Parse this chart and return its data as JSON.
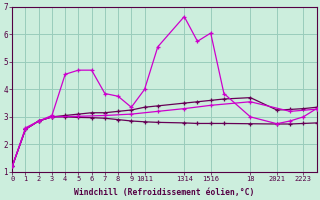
{
  "background_color": "#cceedd",
  "grid_color": "#99ccbb",
  "line_color_bright": "#cc00cc",
  "line_color_dark": "#660055",
  "xlabel": "Windchill (Refroidissement éolien,°C)",
  "xlim": [
    0,
    23
  ],
  "ylim": [
    1,
    7
  ],
  "yticks": [
    1,
    2,
    3,
    4,
    5,
    6,
    7
  ],
  "xtick_positions": [
    0,
    1,
    2,
    3,
    4,
    5,
    6,
    7,
    8,
    9,
    10,
    13,
    15,
    18,
    20,
    22
  ],
  "xtick_labels": [
    "0",
    "1",
    "2",
    "3",
    "4",
    "5",
    "6",
    "7",
    "8",
    "9",
    "1011",
    "1314",
    "1516",
    "18",
    "2021",
    "2223"
  ],
  "s1_x": [
    0,
    1,
    2,
    3,
    4,
    5,
    6,
    7,
    8,
    9,
    10,
    11,
    13,
    14,
    15,
    16,
    18,
    20,
    21,
    22,
    23
  ],
  "s1_y": [
    1.2,
    2.6,
    2.85,
    3.05,
    4.55,
    4.7,
    4.7,
    3.85,
    3.75,
    3.35,
    4.0,
    5.55,
    6.65,
    5.75,
    6.05,
    3.85,
    3.0,
    2.75,
    2.85,
    3.0,
    3.3
  ],
  "s2_x": [
    0,
    1,
    2,
    3,
    4,
    5,
    6,
    7,
    8,
    9,
    10,
    11,
    13,
    14,
    15,
    16,
    18,
    20,
    21,
    22,
    23
  ],
  "s2_y": [
    1.2,
    2.55,
    2.85,
    3.0,
    3.05,
    3.1,
    3.15,
    3.15,
    3.2,
    3.25,
    3.35,
    3.4,
    3.5,
    3.55,
    3.6,
    3.65,
    3.7,
    3.25,
    3.27,
    3.3,
    3.35
  ],
  "s3_x": [
    0,
    1,
    2,
    3,
    5,
    7,
    9,
    11,
    13,
    15,
    18,
    21,
    23
  ],
  "s3_y": [
    1.2,
    2.55,
    2.85,
    3.0,
    3.02,
    3.05,
    3.1,
    3.2,
    3.3,
    3.42,
    3.55,
    3.2,
    3.28
  ],
  "s4_x": [
    0,
    1,
    2,
    3,
    4,
    5,
    6,
    7,
    8,
    9,
    10,
    11,
    13,
    14,
    15,
    16,
    18,
    20,
    21,
    22,
    23
  ],
  "s4_y": [
    1.2,
    2.55,
    2.85,
    3.0,
    3.0,
    2.98,
    2.97,
    2.95,
    2.9,
    2.85,
    2.82,
    2.8,
    2.78,
    2.76,
    2.76,
    2.76,
    2.75,
    2.74,
    2.74,
    2.76,
    2.78
  ]
}
